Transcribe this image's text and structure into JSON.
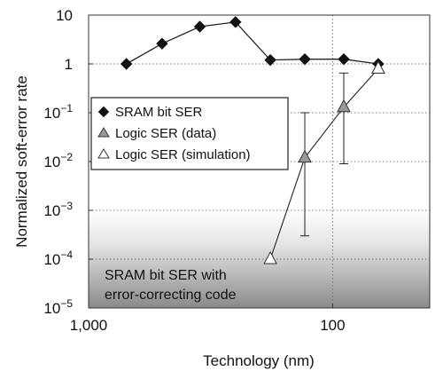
{
  "chart_data": {
    "type": "line",
    "xlabel": "Technology (nm)",
    "ylabel": "Normalized soft-error rate",
    "x_scale": "log-reversed",
    "y_scale": "log",
    "xlim": [
      1000,
      40
    ],
    "ylim": [
      1e-05,
      10
    ],
    "x_tick_labels": [
      "1,000",
      "100"
    ],
    "y_tick_labels": [
      {
        "base": "10",
        "exp": ""
      },
      {
        "base": "1",
        "exp": ""
      },
      {
        "base": "10",
        "exp": "−1"
      },
      {
        "base": "10",
        "exp": "−2"
      },
      {
        "base": "10",
        "exp": "−3"
      },
      {
        "base": "10",
        "exp": "−4"
      },
      {
        "base": "10",
        "exp": "−5"
      }
    ],
    "grid": "horizontal-dotted",
    "legend_position": "left-middle",
    "series": [
      {
        "name": "SRAM bit SER",
        "marker": "diamond",
        "color": "#111111",
        "x": [
          700,
          500,
          350,
          250,
          180,
          130,
          90,
          65
        ],
        "y": [
          1.0,
          2.6,
          5.8,
          7.2,
          1.2,
          1.25,
          1.25,
          1.0
        ]
      },
      {
        "name": "Logic SER (data)",
        "marker": "triangle-filled",
        "color": "#999999",
        "x": [
          130,
          90,
          65
        ],
        "y": [
          0.012,
          0.13,
          0.8
        ],
        "err_low": [
          0.0003,
          0.009,
          null
        ],
        "err_high": [
          0.1,
          0.65,
          null
        ]
      },
      {
        "name": "Logic SER (simulation)",
        "marker": "triangle-open",
        "color": "#ffffff",
        "x": [
          180,
          65
        ],
        "y": [
          0.0001,
          0.8
        ]
      }
    ],
    "shaded_region": {
      "label_line1": "SRAM bit SER with",
      "label_line2": "error-correcting code",
      "y_top": 0.001
    }
  }
}
